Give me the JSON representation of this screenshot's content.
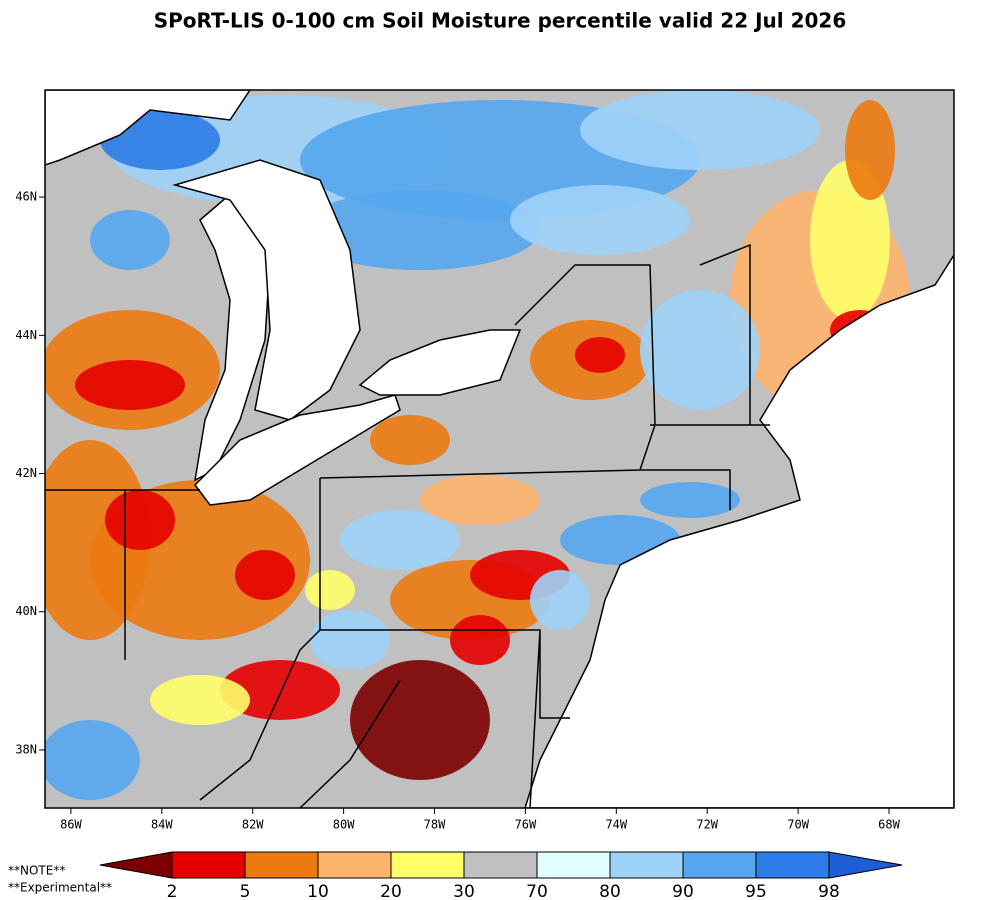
{
  "title": "SPoRT-LIS 0-100 cm Soil Moisture percentile valid 22 Jul 2026",
  "map": {
    "xlim": [
      -86.57,
      -66.57
    ],
    "ylim": [
      37.16,
      47.55
    ],
    "xticks": [
      {
        "value": -86,
        "label": "86W"
      },
      {
        "value": -84,
        "label": "84W"
      },
      {
        "value": -82,
        "label": "82W"
      },
      {
        "value": -80,
        "label": "80W"
      },
      {
        "value": -78,
        "label": "78W"
      },
      {
        "value": -76,
        "label": "76W"
      },
      {
        "value": -74,
        "label": "74W"
      },
      {
        "value": -72,
        "label": "72W"
      },
      {
        "value": -70,
        "label": "70W"
      },
      {
        "value": -68,
        "label": "68W"
      }
    ],
    "yticks": [
      {
        "value": 38,
        "label": "38N"
      },
      {
        "value": 40,
        "label": "40N"
      },
      {
        "value": 42,
        "label": "42N"
      },
      {
        "value": 44,
        "label": "44N"
      },
      {
        "value": 46,
        "label": "46N"
      }
    ]
  },
  "colorbar": {
    "levels": [
      2,
      5,
      10,
      20,
      30,
      70,
      80,
      90,
      95,
      98
    ],
    "colors": [
      "#7d0000",
      "#e60000",
      "#eb7a10",
      "#ffb46e",
      "#ffff6a",
      "#c0c0c0",
      "#e2ffff",
      "#9ed2f8",
      "#55a6ee",
      "#2d7be6",
      "#1c5ed6"
    ]
  },
  "notes": [
    "**NOTE**",
    "**Experimental**"
  ]
}
